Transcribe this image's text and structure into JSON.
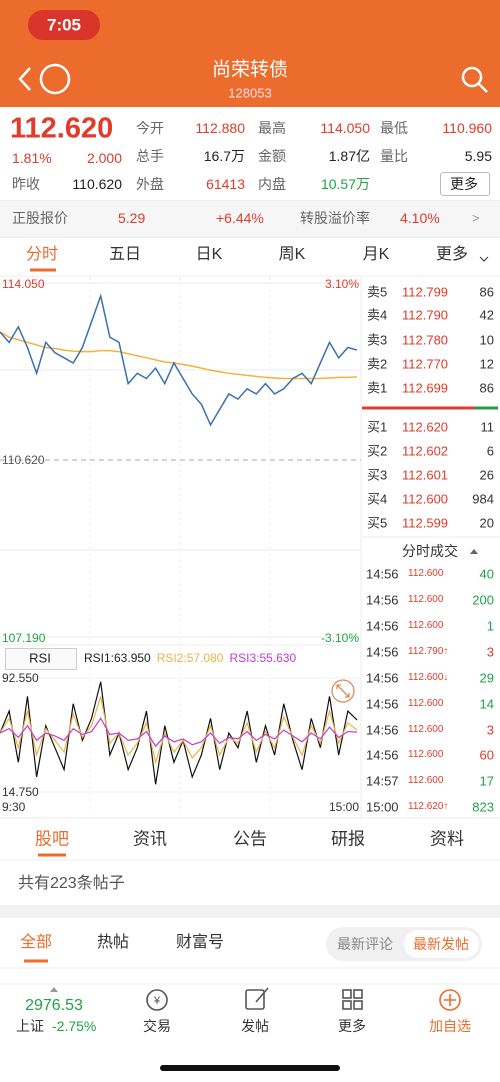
{
  "status_bar": {
    "time": "7:05"
  },
  "header": {
    "title": "尚荣转债",
    "code": "128053"
  },
  "quote": {
    "price": "112.620",
    "change_pct": "1.81%",
    "change": "2.000",
    "prev_close_label": "昨收",
    "prev_close": "110.620",
    "fields": [
      {
        "label": "今开",
        "value": "112.880",
        "color": "#e03b2b"
      },
      {
        "label": "最高",
        "value": "114.050",
        "color": "#e03b2b"
      },
      {
        "label": "最低",
        "value": "110.960",
        "color": "#e03b2b"
      },
      {
        "label": "总手",
        "value": "16.7万",
        "color": "#222"
      },
      {
        "label": "金额",
        "value": "1.87亿",
        "color": "#222"
      },
      {
        "label": "量比",
        "value": "5.95",
        "color": "#222"
      },
      {
        "label": "外盘",
        "value": "61413",
        "color": "#e03b2b"
      },
      {
        "label": "内盘",
        "value": "10.57万",
        "color": "#21a343"
      }
    ],
    "more": "更多"
  },
  "stock_row": {
    "label": "正股报价",
    "price": "5.29",
    "change": "+6.44%",
    "premium_label": "转股溢价率",
    "premium": "4.10%",
    "arrow": ">"
  },
  "tabs": [
    "分时",
    "五日",
    "日K",
    "周K",
    "月K",
    "更多"
  ],
  "intraday": {
    "ylim": [
      107.19,
      114.05
    ],
    "yticks": [
      {
        "value": 114.05,
        "label": "114.050"
      },
      {
        "value": 110.62,
        "label": "110.620"
      },
      {
        "value": 107.19,
        "label": "107.190"
      }
    ],
    "pct_labels": [
      "3.10%",
      "-3.10%"
    ],
    "price": [
      113.1,
      112.9,
      113.2,
      112.8,
      112.3,
      112.9,
      112.7,
      112.6,
      112.5,
      112.8,
      113.3,
      113.8,
      113.0,
      112.9,
      112.1,
      112.3,
      112.2,
      112.4,
      112.1,
      112.5,
      112.2,
      111.9,
      111.7,
      111.3,
      111.6,
      111.9,
      111.8,
      112.0,
      111.9,
      112.1,
      111.9,
      112.0,
      112.2,
      112.3,
      112.1,
      112.5,
      112.9,
      112.6,
      112.8,
      112.75
    ],
    "avg": [
      113.1,
      113.0,
      112.95,
      112.9,
      112.85,
      112.8,
      112.78,
      112.75,
      112.73,
      112.72,
      112.72,
      112.74,
      112.74,
      112.72,
      112.68,
      112.64,
      112.6,
      112.56,
      112.52,
      112.5,
      112.47,
      112.44,
      112.4,
      112.36,
      112.33,
      112.3,
      112.28,
      112.26,
      112.24,
      112.22,
      112.21,
      112.2,
      112.2,
      112.2,
      112.2,
      112.2,
      112.21,
      112.22,
      112.22,
      112.23
    ]
  },
  "rsi": {
    "label": "RSI",
    "ylim": [
      14.75,
      92.55
    ],
    "yticks": [
      {
        "value": 92.55,
        "label": "92.550"
      },
      {
        "value": 14.75,
        "label": "14.750"
      }
    ],
    "xlabels": [
      "9:30",
      "15:00"
    ],
    "series": [
      {
        "name": "RSI1:63.950",
        "color": "#111111",
        "values": [
          55,
          70,
          35,
          80,
          25,
          60,
          45,
          30,
          75,
          50,
          65,
          90,
          40,
          55,
          30,
          45,
          70,
          20,
          60,
          35,
          50,
          25,
          40,
          65,
          30,
          55,
          45,
          70,
          35,
          60,
          40,
          75,
          50,
          30,
          65,
          45,
          80,
          40,
          70,
          63.95
        ]
      },
      {
        "name": "RSI2:57.080",
        "color": "#e8b448",
        "values": [
          55,
          65,
          45,
          70,
          40,
          58,
          50,
          42,
          68,
          52,
          60,
          80,
          48,
          55,
          40,
          48,
          62,
          35,
          55,
          42,
          50,
          38,
          45,
          60,
          40,
          52,
          48,
          62,
          42,
          56,
          45,
          66,
          52,
          40,
          60,
          48,
          70,
          48,
          62,
          57.08
        ]
      },
      {
        "name": "RSI3:55.630",
        "color": "#c23bd4",
        "values": [
          55,
          58,
          52,
          60,
          50,
          55,
          53,
          50,
          58,
          54,
          56,
          65,
          54,
          55,
          50,
          51,
          56,
          46,
          53,
          49,
          51,
          47,
          49,
          55,
          48,
          52,
          51,
          56,
          50,
          54,
          51,
          57,
          53,
          49,
          55,
          51,
          59,
          52,
          56,
          55.63
        ]
      }
    ]
  },
  "order_book": [
    {
      "label": "卖5",
      "price": "112.799",
      "vol": "86"
    },
    {
      "label": "卖4",
      "price": "112.790",
      "vol": "42"
    },
    {
      "label": "卖3",
      "price": "112.780",
      "vol": "10"
    },
    {
      "label": "卖2",
      "price": "112.770",
      "vol": "12"
    },
    {
      "label": "卖1",
      "price": "112.699",
      "vol": "86"
    },
    {
      "label": "买1",
      "price": "112.620",
      "vol": "11"
    },
    {
      "label": "买2",
      "price": "112.602",
      "vol": "6"
    },
    {
      "label": "买3",
      "price": "112.601",
      "vol": "26"
    },
    {
      "label": "买4",
      "price": "112.600",
      "vol": "984"
    },
    {
      "label": "买5",
      "price": "112.599",
      "vol": "20"
    }
  ],
  "trades": {
    "title": "分时成交",
    "rows": [
      {
        "time": "14:56",
        "price": "112.600",
        "vol": "40",
        "color": "#21a343"
      },
      {
        "time": "14:56",
        "price": "112.600",
        "vol": "200",
        "color": "#21a343"
      },
      {
        "time": "14:56",
        "price": "112.600",
        "vol": "1",
        "color": "#21a343"
      },
      {
        "time": "14:56",
        "price": "112.790↑",
        "vol": "3",
        "color": "#e03b2b"
      },
      {
        "time": "14:56",
        "price": "112.600↓",
        "vol": "29",
        "color": "#21a343"
      },
      {
        "time": "14:56",
        "price": "112.600",
        "vol": "14",
        "color": "#21a343"
      },
      {
        "time": "14:56",
        "price": "112.600",
        "vol": "3",
        "color": "#e03b2b"
      },
      {
        "time": "14:56",
        "price": "112.600",
        "vol": "60",
        "color": "#e03b2b"
      },
      {
        "time": "14:57",
        "price": "112.600",
        "vol": "17",
        "color": "#21a343"
      },
      {
        "time": "15:00",
        "price": "112.620↑",
        "vol": "823",
        "color": "#21a343"
      }
    ]
  },
  "news_tabs": [
    "股吧",
    "资讯",
    "公告",
    "研报",
    "资料"
  ],
  "post_count": "共有223条帖子",
  "sub_tabs": [
    "全部",
    "热帖",
    "财富号"
  ],
  "sort_tabs": [
    "最新评论",
    "最新发帖"
  ],
  "bottom_nav": {
    "index_value": "2976.53",
    "index_name": "上证",
    "index_change": "-2.75%",
    "items": [
      "交易",
      "发帖",
      "更多",
      "加自选"
    ]
  }
}
